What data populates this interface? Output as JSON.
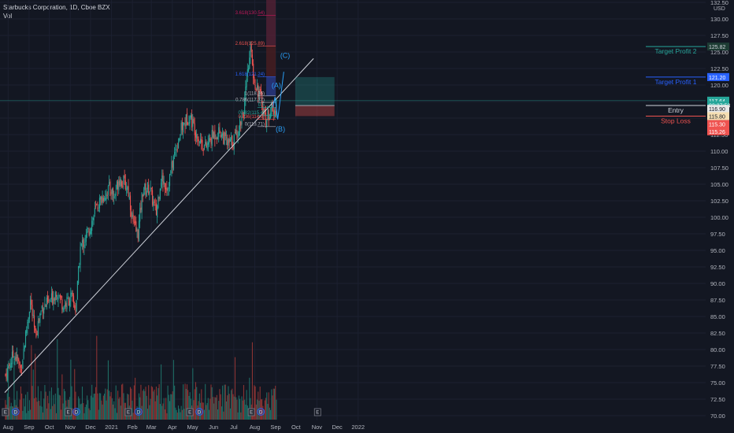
{
  "header": {
    "symbol": "Starbucks Corporation, 1D, Cboe BZX",
    "volume_label": "Vol"
  },
  "chart_data": {
    "type": "candlestick",
    "currency": "USD",
    "y_axis_ticks": [
      "132.50",
      "130.00",
      "127.50",
      "125.00",
      "122.50",
      "120.00",
      "117.50",
      "115.00",
      "112.50",
      "110.00",
      "107.50",
      "105.00",
      "102.50",
      "100.00",
      "97.50",
      "95.00",
      "92.50",
      "90.00",
      "87.50",
      "85.00",
      "82.50",
      "80.00",
      "77.50",
      "75.00",
      "72.50",
      "70.00"
    ],
    "y_axis_values": [
      132.5,
      130,
      127.5,
      125,
      122.5,
      120,
      117.5,
      115,
      112.5,
      110,
      107.5,
      105,
      102.5,
      100,
      97.5,
      95,
      92.5,
      90,
      87.5,
      85,
      82.5,
      80,
      77.5,
      75,
      72.5,
      70
    ],
    "ylim": [
      69.5,
      132.8
    ],
    "x_axis_labels": [
      "Aug",
      "Sep",
      "Oct",
      "Nov",
      "Dec",
      "2021",
      "Feb",
      "Mar",
      "Apr",
      "May",
      "Jun",
      "Jul",
      "Aug",
      "Sep",
      "Oct",
      "Nov",
      "Dec",
      "2022"
    ],
    "price_path": [
      [
        "2020-07-28",
        76.2
      ],
      [
        "2020-08-10",
        79.5
      ],
      [
        "2020-08-20",
        77.0
      ],
      [
        "2020-09-03",
        87.5
      ],
      [
        "2020-09-10",
        82.0
      ],
      [
        "2020-09-20",
        86.5
      ],
      [
        "2020-10-01",
        87.0
      ],
      [
        "2020-10-12",
        89.0
      ],
      [
        "2020-10-22",
        86.5
      ],
      [
        "2020-11-02",
        88.0
      ],
      [
        "2020-11-09",
        86.0
      ],
      [
        "2020-11-16",
        95.5
      ],
      [
        "2020-11-25",
        97.0
      ],
      [
        "2020-12-08",
        101.0
      ],
      [
        "2020-12-18",
        103.0
      ],
      [
        "2020-12-30",
        104.5
      ],
      [
        "2021-01-05",
        103.0
      ],
      [
        "2021-01-12",
        106.0
      ],
      [
        "2021-01-25",
        104.5
      ],
      [
        "2021-02-03",
        98.5
      ],
      [
        "2021-02-09",
        97.5
      ],
      [
        "2021-02-16",
        104.0
      ],
      [
        "2021-02-26",
        104.5
      ],
      [
        "2021-03-08",
        100.5
      ],
      [
        "2021-03-15",
        106.0
      ],
      [
        "2021-03-25",
        104.5
      ],
      [
        "2021-04-05",
        110.0
      ],
      [
        "2021-04-15",
        113.5
      ],
      [
        "2021-04-26",
        115.5
      ],
      [
        "2021-05-04",
        113.5
      ],
      [
        "2021-05-10",
        112.0
      ],
      [
        "2021-05-20",
        110.5
      ],
      [
        "2021-06-01",
        112.5
      ],
      [
        "2021-06-11",
        113.0
      ],
      [
        "2021-06-22",
        111.0
      ],
      [
        "2021-06-30",
        111.5
      ],
      [
        "2021-07-08",
        113.5
      ],
      [
        "2021-07-16",
        116.5
      ],
      [
        "2021-07-23",
        123.0
      ],
      [
        "2021-07-27",
        125.8
      ],
      [
        "2021-07-30",
        121.0
      ],
      [
        "2021-08-05",
        119.5
      ],
      [
        "2021-08-11",
        117.5
      ],
      [
        "2021-08-18",
        114.5
      ],
      [
        "2021-08-24",
        116.5
      ],
      [
        "2021-08-30",
        115.5
      ],
      [
        "2021-09-03",
        117.6
      ]
    ],
    "volume": {
      "label": "Vol",
      "scale_note": "bars at bottom, no axis"
    },
    "trendline": {
      "from": [
        "2020-07-27",
        73.5
      ],
      "to": [
        "2021-10-27",
        124.0
      ]
    },
    "fibonacci": {
      "levels": [
        {
          "ratio": "3.618",
          "price": "130.54",
          "label": "3.618(130.54)"
        },
        {
          "ratio": "2.618",
          "price": "125.89",
          "label": "2.618(125.89)"
        },
        {
          "ratio": "1.618",
          "price": "121.24",
          "label": "1.618(121.24)"
        },
        {
          "ratio": "1",
          "price": "118.36",
          "label": "1(118.36)"
        },
        {
          "ratio": "0.786",
          "price": "117.37",
          "label": "0.786(117.37)"
        },
        {
          "ratio": "0.5",
          "label": "0.5"
        },
        {
          "ratio": "0.382",
          "label": "0.382(115.4)"
        },
        {
          "ratio": "0.236",
          "label": "0.236(114.8)"
        },
        {
          "ratio": "0",
          "price": "113.71",
          "label": "0(113.71)"
        }
      ]
    },
    "wave_labels": [
      "(A)",
      "(B)",
      "(C)"
    ],
    "position": {
      "target_profit_2": {
        "label": "Target Profit 2",
        "price": "125.82",
        "color": "#26a69a"
      },
      "target_profit_1": {
        "label": "Target Profit 1",
        "price": "121.20",
        "color": "#2962ff"
      },
      "entry": {
        "label": "Entry",
        "price": "116.90",
        "color": "#d1d4dc"
      },
      "stop_loss": {
        "label": "Stop Loss",
        "price": "115.30",
        "color": "#ef5350"
      }
    },
    "price_tags": [
      {
        "text": "125.82",
        "value": 125.82,
        "bg": "#1e3d34",
        "fg": "#d1d4dc"
      },
      {
        "text": "121.25",
        "value": 121.25,
        "bg": "#1b2a50",
        "fg": "#d1d4dc"
      },
      {
        "text": "121.20",
        "value": 121.2,
        "bg": "#2962ff",
        "fg": "#ffffff"
      },
      {
        "text": "117.64",
        "value": 117.64,
        "bg": "#26a69a",
        "fg": "#ffffff"
      },
      {
        "text": "02:37:53",
        "value": 116.9,
        "bg": "#26a69a",
        "fg": "#ffffff"
      },
      {
        "text": "116.90",
        "value": 116.9,
        "bg": "#e6e6e6",
        "fg": "#131722"
      },
      {
        "text": "115.80",
        "value": 115.8,
        "bg": "#f5deb3",
        "fg": "#131722"
      },
      {
        "text": "115.30",
        "value": 115.3,
        "bg": "#ef5350",
        "fg": "#ffffff"
      },
      {
        "text": "115.26",
        "value": 115.26,
        "bg": "#ef5350",
        "fg": "#ffffff"
      }
    ],
    "event_markers": [
      {
        "type": "E",
        "date": "2020-07-28"
      },
      {
        "type": "D",
        "date": "2020-08-12"
      },
      {
        "type": "E",
        "date": "2020-10-29"
      },
      {
        "type": "D",
        "date": "2020-11-10"
      },
      {
        "type": "E",
        "date": "2021-01-26"
      },
      {
        "type": "D",
        "date": "2021-02-10"
      },
      {
        "type": "E",
        "date": "2021-04-27"
      },
      {
        "type": "D",
        "date": "2021-05-11"
      },
      {
        "type": "E",
        "date": "2021-07-27"
      },
      {
        "type": "D",
        "date": "2021-08-10"
      },
      {
        "type": "E",
        "date": "2021-11-02",
        "future": true
      }
    ],
    "colors": {
      "up": "#26a69a",
      "down": "#ef5350",
      "bg": "#131722",
      "trend": "#d1d4dc",
      "wave": "#2a9df4"
    }
  }
}
